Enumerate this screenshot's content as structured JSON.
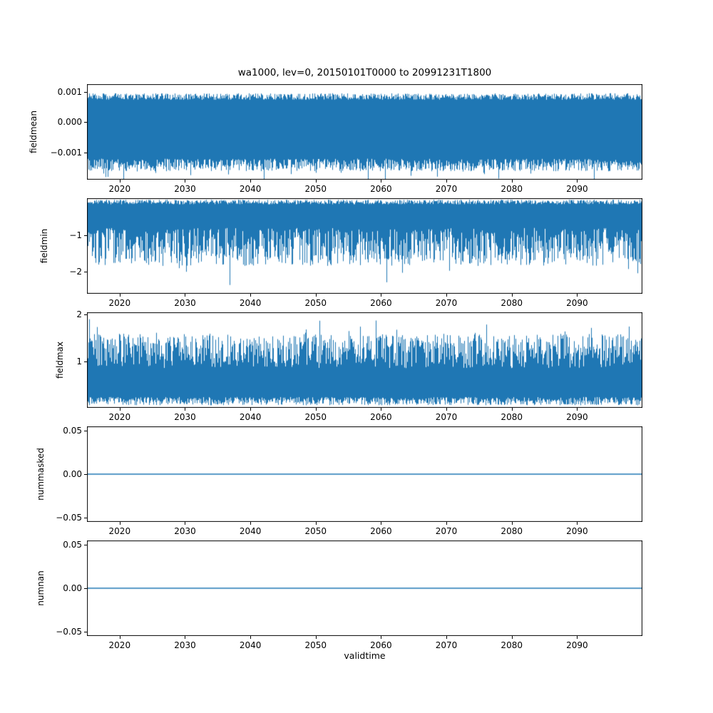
{
  "figure": {
    "title": "wa1000, lev=0, 20150101T0000 to 20991231T1800",
    "xlabel": "validtime",
    "line_color": "#1f77b4",
    "background": "#ffffff",
    "xlim": [
      2015,
      2100
    ],
    "xticks": [
      2020,
      2030,
      2040,
      2050,
      2060,
      2070,
      2080,
      2090
    ]
  },
  "chart_data": [
    {
      "type": "line",
      "name": "fieldmean",
      "ylabel": "fieldmean",
      "x_range": [
        2015,
        2100
      ],
      "ylim": [
        -0.0019,
        0.00125
      ],
      "yticks": [
        {
          "value": 0.001,
          "label": "0.001"
        },
        {
          "value": 0.0,
          "label": "0.000"
        },
        {
          "value": -0.001,
          "label": "−0.001"
        }
      ],
      "summary": "dense high-frequency 6-hourly series oscillating around 0 for 2015-2099",
      "envelope": {
        "top": [
          0.00075,
          0.001
        ],
        "bottom": [
          -0.0017,
          -0.0012
        ]
      },
      "render": {
        "mode": "band",
        "seed": 11,
        "top": {
          "base": 0.00075,
          "jitter": 0.00022,
          "spike_chance": 0.0,
          "spike_extra": 0.0
        },
        "bottom": {
          "base": -0.00122,
          "jitter": -0.00042,
          "spike_chance": 0.04,
          "spike_extra": -0.00035
        }
      }
    },
    {
      "type": "line",
      "name": "fieldmin",
      "ylabel": "fieldmin",
      "x_range": [
        2015,
        2100
      ],
      "ylim": [
        -2.6,
        0.0
      ],
      "yticks": [
        {
          "value": -1,
          "label": "−1"
        },
        {
          "value": -2,
          "label": "−2"
        }
      ],
      "summary": "dense negative spike series: upper edge near -0.05, downward spikes mostly to -1 .. -1.9, extremes near -2.4",
      "envelope": {
        "top": [
          -0.15,
          -0.02
        ],
        "bottom": [
          -2.4,
          -0.8
        ]
      },
      "render": {
        "mode": "band",
        "seed": 22,
        "top": {
          "base": -0.02,
          "jitter": -0.13,
          "spike_chance": 0.0,
          "spike_extra": 0.0
        },
        "bottom": {
          "base": -0.8,
          "jitter": -1.05,
          "spike_chance": 0.035,
          "spike_extra": -0.55
        }
      }
    },
    {
      "type": "line",
      "name": "fieldmax",
      "ylabel": "fieldmax",
      "x_range": [
        2015,
        2100
      ],
      "ylim": [
        0.0,
        2.05
      ],
      "yticks": [
        {
          "value": 2,
          "label": "2"
        },
        {
          "value": 1,
          "label": "1"
        }
      ],
      "summary": "dense positive spike series: lower edge near 0.1, upward spikes mostly to 0.9 .. 1.6, extremes near 2.0",
      "envelope": {
        "top": [
          0.85,
          2.0
        ],
        "bottom": [
          0.04,
          0.22
        ]
      },
      "render": {
        "mode": "band",
        "seed": 33,
        "top": {
          "base": 0.85,
          "jitter": 0.75,
          "spike_chance": 0.05,
          "spike_extra": 0.4
        },
        "bottom": {
          "base": 0.04,
          "jitter": 0.18,
          "spike_chance": 0.0,
          "spike_extra": 0.0
        }
      }
    },
    {
      "type": "line",
      "name": "nummasked",
      "ylabel": "nummasked",
      "x_range": [
        2015,
        2100
      ],
      "ylim": [
        -0.055,
        0.055
      ],
      "yticks": [
        {
          "value": 0.05,
          "label": "0.05"
        },
        {
          "value": 0.0,
          "label": "0.00"
        },
        {
          "value": -0.05,
          "label": "−0.05"
        }
      ],
      "summary": "constant zero for entire period",
      "values": "constant 0",
      "render": {
        "mode": "flat",
        "value": 0,
        "linewidth": 1.6
      }
    },
    {
      "type": "line",
      "name": "numnan",
      "ylabel": "numnan",
      "x_range": [
        2015,
        2100
      ],
      "ylim": [
        -0.055,
        0.055
      ],
      "yticks": [
        {
          "value": 0.05,
          "label": "0.05"
        },
        {
          "value": 0.0,
          "label": "0.00"
        },
        {
          "value": -0.05,
          "label": "−0.05"
        }
      ],
      "summary": "constant zero for entire period",
      "values": "constant 0",
      "render": {
        "mode": "flat",
        "value": 0,
        "linewidth": 1.6
      }
    }
  ]
}
